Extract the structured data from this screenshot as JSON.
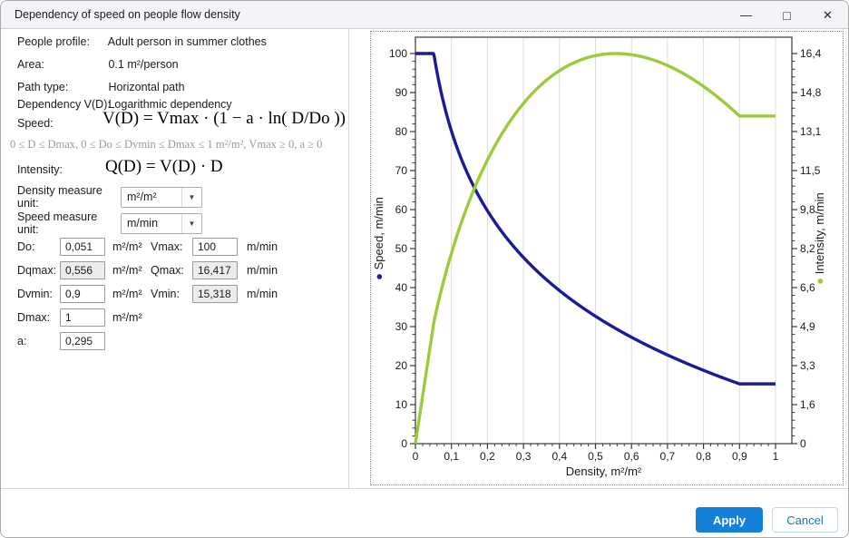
{
  "window": {
    "title": "Dependency of speed on people flow density",
    "controls": {
      "minimize": "—",
      "maximize": "□",
      "close": "✕"
    }
  },
  "info": {
    "rows": [
      {
        "label": "People profile:",
        "value": "Adult person in summer clothes"
      },
      {
        "label": "Area:",
        "value": "0.1  m²/person"
      },
      {
        "label": "Path type:",
        "value": "Horizontal path"
      },
      {
        "label": "Dependency V(D):",
        "value": "Logarithmic dependency"
      }
    ],
    "speed_label": "Speed:",
    "speed_formula": "V(D) = Vmax · (1 − a · ln( D/Do ))",
    "constraint": "0 ≤ D ≤ Dmax, 0 ≤ Do ≤ Dvmin ≤ Dmax ≤ 1 m²/m², Vmax ≥ 0, a ≥ 0",
    "intensity_label": "Intensity:",
    "intensity_formula": "Q(D) = V(D) · D"
  },
  "units": {
    "density_label": "Density measure unit:",
    "density_value": "m²/m²",
    "speed_label": "Speed measure unit:",
    "speed_value": "m/min",
    "dropdown_arrow": "▼"
  },
  "params": {
    "rows": [
      {
        "l1": "Do:",
        "v1": "0,051",
        "u1": "m²/m²",
        "l2": "Vmax:",
        "v2": "100",
        "u2": "m/min"
      },
      {
        "l1": "Dqmax:",
        "v1": "0,556",
        "u1": "m²/m²",
        "l2": "Qmax:",
        "v2": "16,417",
        "u2": "m/min"
      },
      {
        "l1": "Dvmin:",
        "v1": "0,9",
        "u1": "m²/m²",
        "l2": "Vmin:",
        "v2": "15,318",
        "u2": "m/min"
      },
      {
        "l1": "Dmax:",
        "v1": "1",
        "u1": "m²/m²"
      },
      {
        "l1": "a:",
        "v1": "0,295"
      }
    ]
  },
  "footer": {
    "apply": "Apply",
    "cancel": "Cancel"
  },
  "chart_data": {
    "type": "line",
    "xlabel": "Density, m²/m²",
    "ylabel_left": "Speed, m/min",
    "ylabel_right": "Intensity, m/min",
    "xlim": [
      0,
      1
    ],
    "ylim_left": [
      0,
      100
    ],
    "ylim_right": [
      0,
      16.417
    ],
    "x_ticks": [
      "0",
      "0,1",
      "0,2",
      "0,3",
      "0,4",
      "0,5",
      "0,6",
      "0,7",
      "0,8",
      "0,9",
      "1"
    ],
    "left_ticks": [
      "0",
      "10",
      "20",
      "30",
      "40",
      "50",
      "60",
      "70",
      "80",
      "90",
      "100"
    ],
    "right_ticks": [
      "0",
      "1,6",
      "3,3",
      "4,9",
      "6,6",
      "8,2",
      "9,8",
      "11,5",
      "13,1",
      "14,8",
      "16,4"
    ],
    "grid": "vertical-only",
    "legend": "axis-bullets",
    "marker": "●",
    "model_params": {
      "Vmax": 100,
      "a": 0.295,
      "Do": 0.051,
      "Dvmin": 0.9,
      "Dmax": 1,
      "Vmin": 15.318,
      "Qmax": 16.417
    },
    "series": [
      {
        "name": "Speed",
        "axis": "left",
        "color": "#1b1b99",
        "model": "V(D) = Vmax for D ≤ Do; Vmax·(1 − a·ln(D/Do)) for Do ≤ D ≤ Dvmin; Vmin for D ≥ Dvmin"
      },
      {
        "name": "Intensity",
        "axis": "right",
        "color": "#9cca3a",
        "model": "Q(D) = V(D)·D for D ≤ Dvmin; constant Vmin·Dvmin for D ≥ Dvmin"
      }
    ],
    "sampled_points": {
      "x": [
        0,
        0.051,
        0.1,
        0.15,
        0.2,
        0.25,
        0.3,
        0.35,
        0.4,
        0.45,
        0.5,
        0.556,
        0.6,
        0.65,
        0.7,
        0.75,
        0.8,
        0.85,
        0.9,
        0.95,
        1.0
      ],
      "speed": [
        100,
        100,
        80.1,
        68.2,
        59.7,
        53.1,
        47.7,
        43.2,
        39.2,
        35.8,
        32.7,
        29.5,
        27.3,
        24.9,
        22.7,
        20.7,
        18.8,
        17.0,
        15.3,
        15.3,
        15.3
      ],
      "intensity": [
        0,
        5.1,
        8.0,
        10.2,
        11.9,
        13.3,
        14.3,
        15.1,
        15.7,
        16.1,
        16.3,
        16.42,
        16.4,
        16.2,
        15.9,
        15.5,
        15.0,
        14.5,
        13.8,
        13.8,
        13.8
      ]
    }
  }
}
